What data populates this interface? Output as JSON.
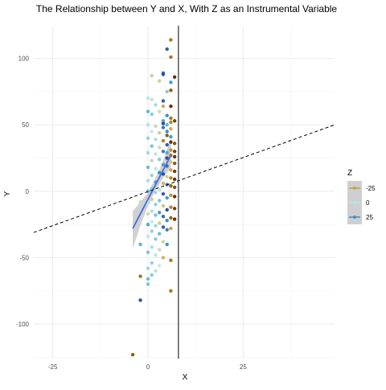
{
  "chart_data": {
    "type": "scatter",
    "title": "The Relationship between Y and X, With Z as an Instrumental Variable",
    "xlabel": "X",
    "ylabel": "Y",
    "xlim": [
      -30,
      49
    ],
    "ylim": [
      -126,
      124
    ],
    "x_ticks": [
      -25,
      0,
      25
    ],
    "x_tick_labels": [
      "-25",
      "0",
      "25"
    ],
    "y_ticks": [
      -100,
      -50,
      0,
      50,
      100
    ],
    "y_tick_labels": [
      "-100",
      "-50",
      "0",
      "50",
      "100"
    ],
    "grid": true,
    "legend": {
      "title": "Z",
      "position": "right",
      "entries": [
        {
          "label": "-25",
          "color": "#c9a34e"
        },
        {
          "label": "0",
          "color": "#b8e6e6"
        },
        {
          "label": "25",
          "color": "#4a8fc7"
        }
      ]
    },
    "vline": {
      "x": 8,
      "color": "#000000"
    },
    "dashed_line": {
      "x1": -30,
      "y1": -31,
      "x2": 49,
      "y2": 50
    },
    "fit": {
      "color": "#3f6de0",
      "band_color": "#bdbdbd",
      "x": [
        -4,
        -2,
        0,
        2,
        4,
        6
      ],
      "y": [
        -28,
        -17,
        -6,
        5,
        16,
        27
      ],
      "lower": [
        -43,
        -26,
        -11,
        1,
        10,
        18
      ],
      "upper": [
        -15,
        -8,
        -1,
        10,
        23,
        40
      ]
    },
    "points": [
      {
        "x": 6,
        "y": 114,
        "z": -22
      },
      {
        "x": 6,
        "y": 101,
        "z": -22
      },
      {
        "x": 5,
        "y": 107,
        "z": 28
      },
      {
        "x": 4,
        "y": 89,
        "z": 25
      },
      {
        "x": 4,
        "y": 88,
        "z": 30
      },
      {
        "x": 7,
        "y": 86,
        "z": -30
      },
      {
        "x": 1,
        "y": 87,
        "z": -8
      },
      {
        "x": 3,
        "y": 83,
        "z": -8
      },
      {
        "x": 6,
        "y": 82,
        "z": 20
      },
      {
        "x": 5,
        "y": 75,
        "z": 10
      },
      {
        "x": 6,
        "y": 76,
        "z": -25
      },
      {
        "x": 4,
        "y": 68,
        "z": 28
      },
      {
        "x": 0,
        "y": 70,
        "z": 2
      },
      {
        "x": 1,
        "y": 69,
        "z": -3
      },
      {
        "x": 2,
        "y": 65,
        "z": 5
      },
      {
        "x": 4,
        "y": 64,
        "z": -15
      },
      {
        "x": 6,
        "y": 64,
        "z": -30
      },
      {
        "x": 0,
        "y": 60,
        "z": 15
      },
      {
        "x": 1,
        "y": 58,
        "z": 10
      },
      {
        "x": 3,
        "y": 60,
        "z": -5
      },
      {
        "x": 5,
        "y": 57,
        "z": 22
      },
      {
        "x": 6,
        "y": 55,
        "z": -22
      },
      {
        "x": 7,
        "y": 53,
        "z": -28
      },
      {
        "x": 4,
        "y": 53,
        "z": 18
      },
      {
        "x": 4,
        "y": 51,
        "z": 30
      },
      {
        "x": 6,
        "y": 52,
        "z": -20
      },
      {
        "x": 5,
        "y": 50,
        "z": 15
      },
      {
        "x": 0,
        "y": 50,
        "z": 3
      },
      {
        "x": 2,
        "y": 49,
        "z": -6
      },
      {
        "x": 4,
        "y": 48,
        "z": 25
      },
      {
        "x": 6,
        "y": 47,
        "z": -15
      },
      {
        "x": 5,
        "y": 45,
        "z": 22
      },
      {
        "x": 1,
        "y": 45,
        "z": 0
      },
      {
        "x": 3,
        "y": 44,
        "z": -10
      },
      {
        "x": 5,
        "y": 42,
        "z": -25
      },
      {
        "x": 6,
        "y": 41,
        "z": 20
      },
      {
        "x": 0,
        "y": 40,
        "z": 8
      },
      {
        "x": 2,
        "y": 39,
        "z": 4
      },
      {
        "x": 4,
        "y": 38,
        "z": -20
      },
      {
        "x": 6,
        "y": 37,
        "z": -30
      },
      {
        "x": 7,
        "y": 36,
        "z": -26
      },
      {
        "x": 5,
        "y": 35,
        "z": 28
      },
      {
        "x": 1,
        "y": 34,
        "z": 12
      },
      {
        "x": 3,
        "y": 33,
        "z": -4
      },
      {
        "x": 6,
        "y": 31,
        "z": -18
      },
      {
        "x": 7,
        "y": 30,
        "z": -28
      },
      {
        "x": 4,
        "y": 30,
        "z": 24
      },
      {
        "x": 5,
        "y": 29,
        "z": 18
      },
      {
        "x": 0,
        "y": 29,
        "z": 6
      },
      {
        "x": 2,
        "y": 28,
        "z": -2
      },
      {
        "x": 6,
        "y": 27,
        "z": -22
      },
      {
        "x": 7,
        "y": 26,
        "z": -30
      },
      {
        "x": 5,
        "y": 25,
        "z": 30
      },
      {
        "x": 3,
        "y": 24,
        "z": 10
      },
      {
        "x": 1,
        "y": 23,
        "z": -6
      },
      {
        "x": 6,
        "y": 22,
        "z": -12
      },
      {
        "x": 7,
        "y": 21,
        "z": -25
      },
      {
        "x": 4,
        "y": 20,
        "z": 20
      },
      {
        "x": 5,
        "y": 19,
        "z": 26
      },
      {
        "x": 0,
        "y": 18,
        "z": 14
      },
      {
        "x": 2,
        "y": 17,
        "z": 2
      },
      {
        "x": 6,
        "y": 16,
        "z": -16
      },
      {
        "x": 7,
        "y": 15,
        "z": -28
      },
      {
        "x": 3,
        "y": 14,
        "z": 22
      },
      {
        "x": 4,
        "y": 13,
        "z": 30
      },
      {
        "x": 1,
        "y": 12,
        "z": 8
      },
      {
        "x": 5,
        "y": 11,
        "z": -8
      },
      {
        "x": 6,
        "y": 10,
        "z": -20
      },
      {
        "x": 7,
        "y": 9,
        "z": -30
      },
      {
        "x": 0,
        "y": 8,
        "z": 4
      },
      {
        "x": 2,
        "y": 7,
        "z": 18
      },
      {
        "x": 4,
        "y": 6,
        "z": -14
      },
      {
        "x": 5,
        "y": 5,
        "z": 24
      },
      {
        "x": 6,
        "y": 4,
        "z": -24
      },
      {
        "x": 7,
        "y": 3,
        "z": -26
      },
      {
        "x": 1,
        "y": 2,
        "z": 10
      },
      {
        "x": 3,
        "y": 1,
        "z": -2
      },
      {
        "x": 0,
        "y": 0,
        "z": 16
      },
      {
        "x": 2,
        "y": -1,
        "z": 6
      },
      {
        "x": 4,
        "y": -2,
        "z": 28
      },
      {
        "x": 6,
        "y": -3,
        "z": -18
      },
      {
        "x": 7,
        "y": -4,
        "z": -30
      },
      {
        "x": 5,
        "y": -5,
        "z": 20
      },
      {
        "x": 1,
        "y": -6,
        "z": -8
      },
      {
        "x": 3,
        "y": -7,
        "z": 12
      },
      {
        "x": -2,
        "y": -8,
        "z": -4
      },
      {
        "x": 0,
        "y": -9,
        "z": 2
      },
      {
        "x": 2,
        "y": -10,
        "z": 8
      },
      {
        "x": 4,
        "y": -11,
        "z": -12
      },
      {
        "x": 6,
        "y": -12,
        "z": -20
      },
      {
        "x": 7,
        "y": -13,
        "z": -28
      },
      {
        "x": 5,
        "y": -14,
        "z": 30
      },
      {
        "x": 1,
        "y": -15,
        "z": 4
      },
      {
        "x": 3,
        "y": -16,
        "z": 20
      },
      {
        "x": 0,
        "y": -17,
        "z": -6
      },
      {
        "x": 2,
        "y": -18,
        "z": 12
      },
      {
        "x": 4,
        "y": -19,
        "z": 26
      },
      {
        "x": 6,
        "y": -20,
        "z": -24
      },
      {
        "x": 7,
        "y": -21,
        "z": -30
      },
      {
        "x": 5,
        "y": -22,
        "z": 22
      },
      {
        "x": 1,
        "y": -23,
        "z": 0
      },
      {
        "x": 3,
        "y": -24,
        "z": -10
      },
      {
        "x": 0,
        "y": -25,
        "z": 18
      },
      {
        "x": 2,
        "y": -26,
        "z": 6
      },
      {
        "x": 4,
        "y": -27,
        "z": 28
      },
      {
        "x": 6,
        "y": -28,
        "z": -16
      },
      {
        "x": 5,
        "y": -29,
        "z": 24
      },
      {
        "x": 1,
        "y": -30,
        "z": 8
      },
      {
        "x": 3,
        "y": -32,
        "z": 14
      },
      {
        "x": 0,
        "y": -34,
        "z": -2
      },
      {
        "x": 2,
        "y": -36,
        "z": 10
      },
      {
        "x": 4,
        "y": -38,
        "z": -8
      },
      {
        "x": 5,
        "y": -40,
        "z": 22
      },
      {
        "x": -2,
        "y": -40,
        "z": 16
      },
      {
        "x": 1,
        "y": -42,
        "z": 4
      },
      {
        "x": 3,
        "y": -44,
        "z": -6
      },
      {
        "x": 0,
        "y": -46,
        "z": 12
      },
      {
        "x": 2,
        "y": -48,
        "z": 2
      },
      {
        "x": 4,
        "y": -50,
        "z": -14
      },
      {
        "x": 6,
        "y": -52,
        "z": -22
      },
      {
        "x": 1,
        "y": -54,
        "z": 8
      },
      {
        "x": 3,
        "y": -56,
        "z": 0
      },
      {
        "x": 0,
        "y": -58,
        "z": 6
      },
      {
        "x": 2,
        "y": -60,
        "z": -4
      },
      {
        "x": 1,
        "y": -63,
        "z": 10
      },
      {
        "x": 0,
        "y": -66,
        "z": 14
      },
      {
        "x": -2,
        "y": -64,
        "z": -22
      },
      {
        "x": 0,
        "y": -70,
        "z": 12
      },
      {
        "x": 6,
        "y": -75,
        "z": -22
      },
      {
        "x": -2,
        "y": -82,
        "z": 30
      },
      {
        "x": -4,
        "y": -123,
        "z": -25
      }
    ]
  }
}
